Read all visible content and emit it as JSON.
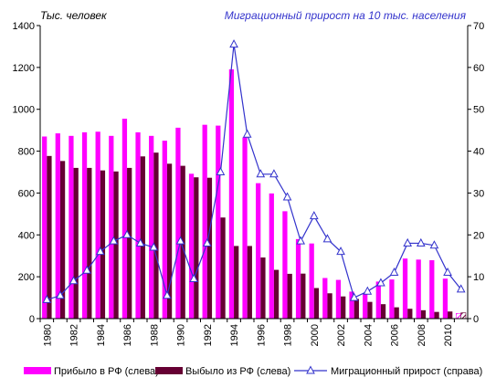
{
  "chart_data": {
    "type": "bar",
    "left_axis_title": "Тыс. человек",
    "right_axis_title": "Миграционный прирост на 10 тыс. населения",
    "categories": [
      "1980",
      "1981",
      "1982",
      "1983",
      "1984",
      "1985",
      "1986",
      "1987",
      "1988",
      "1989",
      "1990",
      "1991",
      "1992",
      "1993",
      "1994",
      "1995",
      "1996",
      "1997",
      "1998",
      "1999",
      "2000",
      "2001",
      "2002",
      "2003",
      "2004",
      "2005",
      "2006",
      "2007",
      "2008",
      "2009",
      "2010",
      "2011"
    ],
    "x_tick_labels": [
      "1980",
      "1982",
      "1984",
      "1986",
      "1988",
      "1990",
      "1992",
      "1994",
      "1996",
      "1998",
      "2000",
      "2002",
      "2004",
      "2006",
      "2008",
      "2010"
    ],
    "ylim_left": [
      0,
      1400
    ],
    "yticks_left": [
      "0",
      "200",
      "400",
      "600",
      "800",
      "1000",
      "1200",
      "1400"
    ],
    "ylim_right": [
      0,
      70
    ],
    "yticks_right": [
      "0",
      "10",
      "20",
      "30",
      "40",
      "50",
      "60",
      "70"
    ],
    "grid": false,
    "legend_position": "bottom",
    "series": [
      {
        "name": "Прибыло в РФ (слева)",
        "kind": "bar",
        "axis": "left",
        "color": "#ff00ff",
        "values": [
          870,
          885,
          873,
          890,
          893,
          873,
          955,
          890,
          873,
          850,
          912,
          692,
          926,
          922,
          1191,
          866,
          647,
          598,
          513,
          380,
          359,
          194,
          185,
          129,
          120,
          177,
          187,
          287,
          282,
          279,
          191,
          25
        ]
      },
      {
        "name": "Выбыло из РФ (слева)",
        "kind": "bar",
        "axis": "left",
        "color": "#660033",
        "values": [
          777,
          753,
          720,
          720,
          708,
          703,
          720,
          775,
          793,
          740,
          730,
          675,
          673,
          483,
          347,
          347,
          292,
          233,
          214,
          215,
          146,
          121,
          106,
          94,
          80,
          69,
          54,
          47,
          40,
          32,
          34,
          28
        ]
      },
      {
        "name": "Миграционный прирост (справа)",
        "kind": "line",
        "axis": "right",
        "color": "#3333cc",
        "values": [
          4.5,
          5.5,
          9,
          11.5,
          16,
          18.5,
          20,
          18,
          17,
          5.5,
          18.5,
          9.5,
          18,
          35,
          65.5,
          44,
          34.5,
          34.5,
          29,
          18.5,
          24.5,
          19,
          16,
          5,
          6.5,
          8.5,
          11,
          18,
          18,
          17.5,
          11,
          7
        ]
      }
    ]
  }
}
